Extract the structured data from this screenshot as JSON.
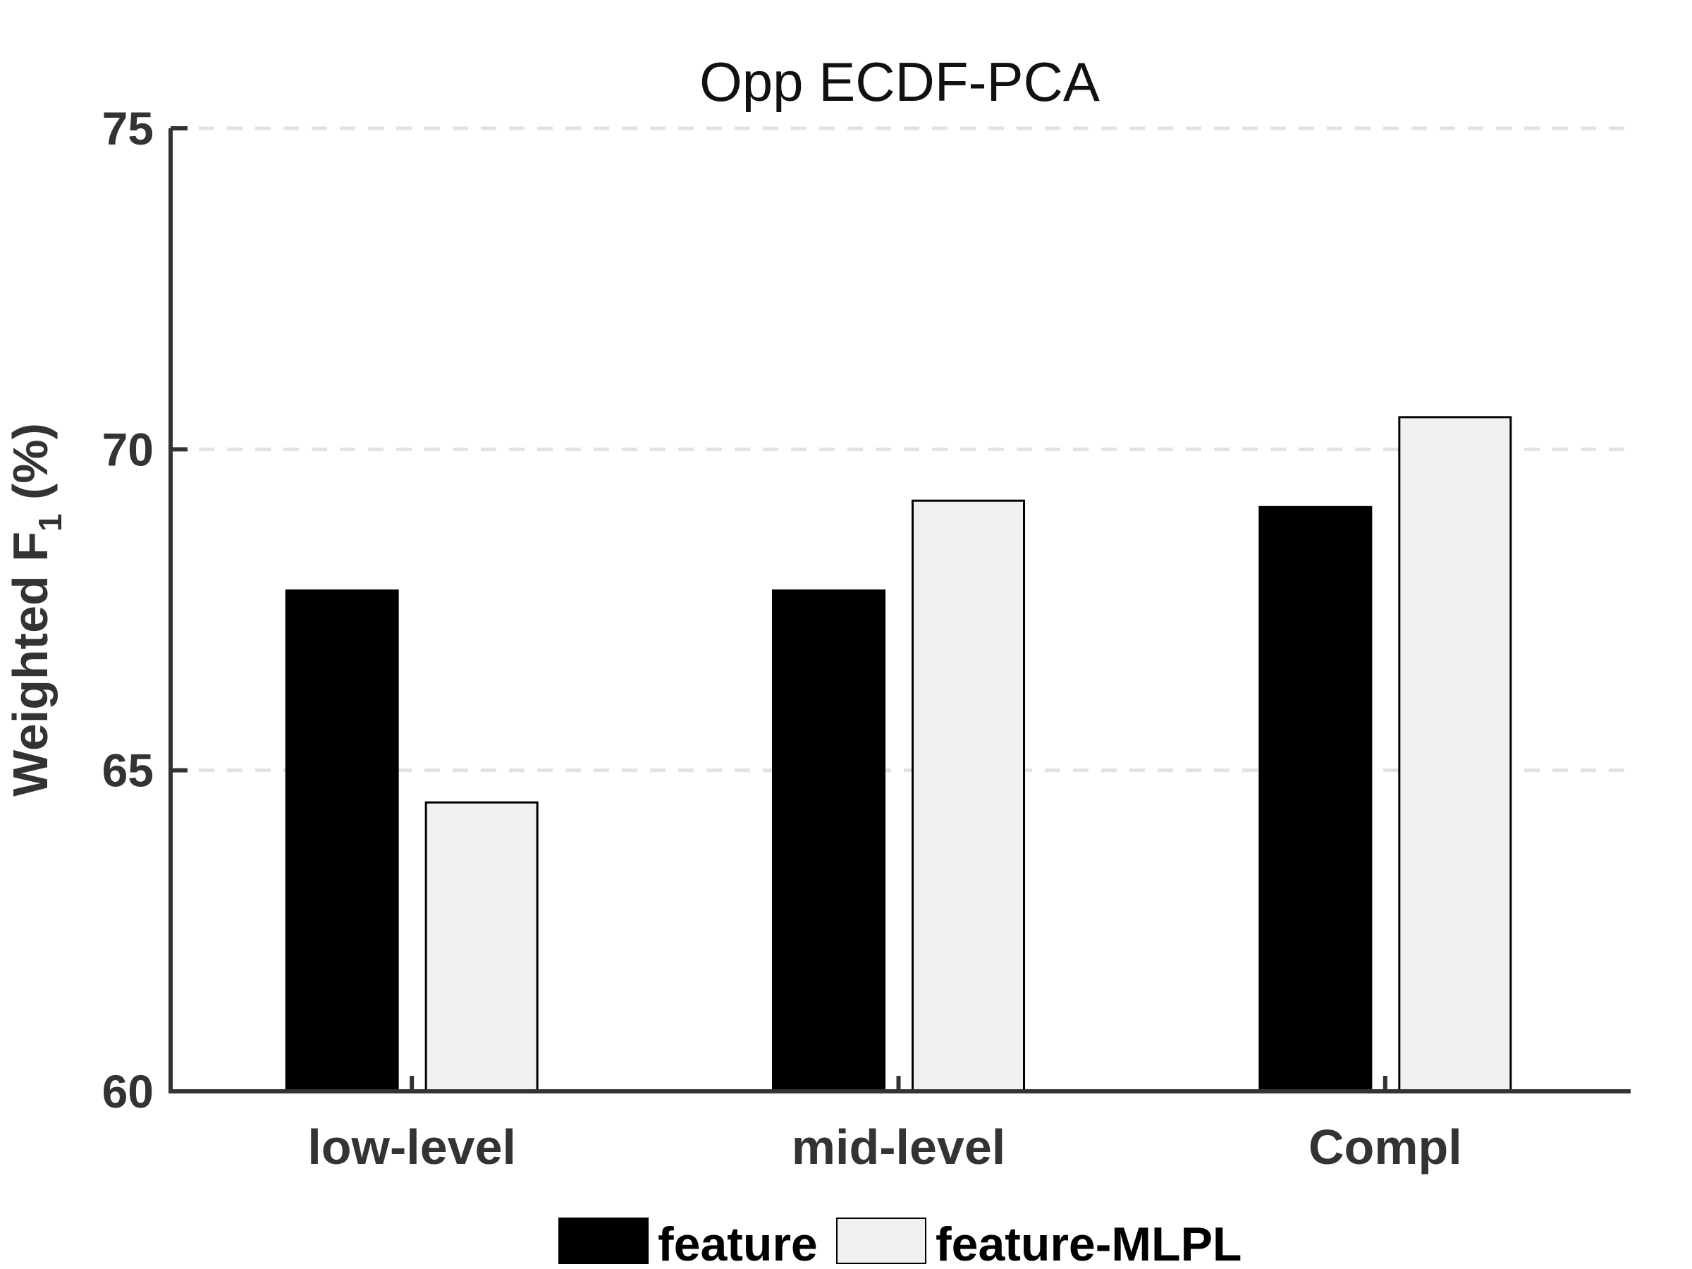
{
  "chart_data": {
    "type": "bar",
    "title": "Opp   ECDF-PCA",
    "ylabel_main": "Weighted  F",
    "ylabel_sub": "1",
    "ylabel_suffix": "  (%)",
    "xlabel": "",
    "categories": [
      "low-level",
      "mid-level",
      "Compl"
    ],
    "series": [
      {
        "name": "feature",
        "values": [
          67.8,
          67.8,
          69.1
        ],
        "color": "#000000"
      },
      {
        "name": "feature-MLPL",
        "values": [
          64.5,
          69.2,
          70.5
        ],
        "color": "#f0f0f0"
      }
    ],
    "ylim": [
      60,
      75
    ],
    "yticks": [
      60,
      65,
      70,
      75
    ],
    "ytick_labels": [
      "60",
      "65",
      "70",
      "75"
    ],
    "grid": "horizontal dashed",
    "legend_position": "bottom-center"
  }
}
